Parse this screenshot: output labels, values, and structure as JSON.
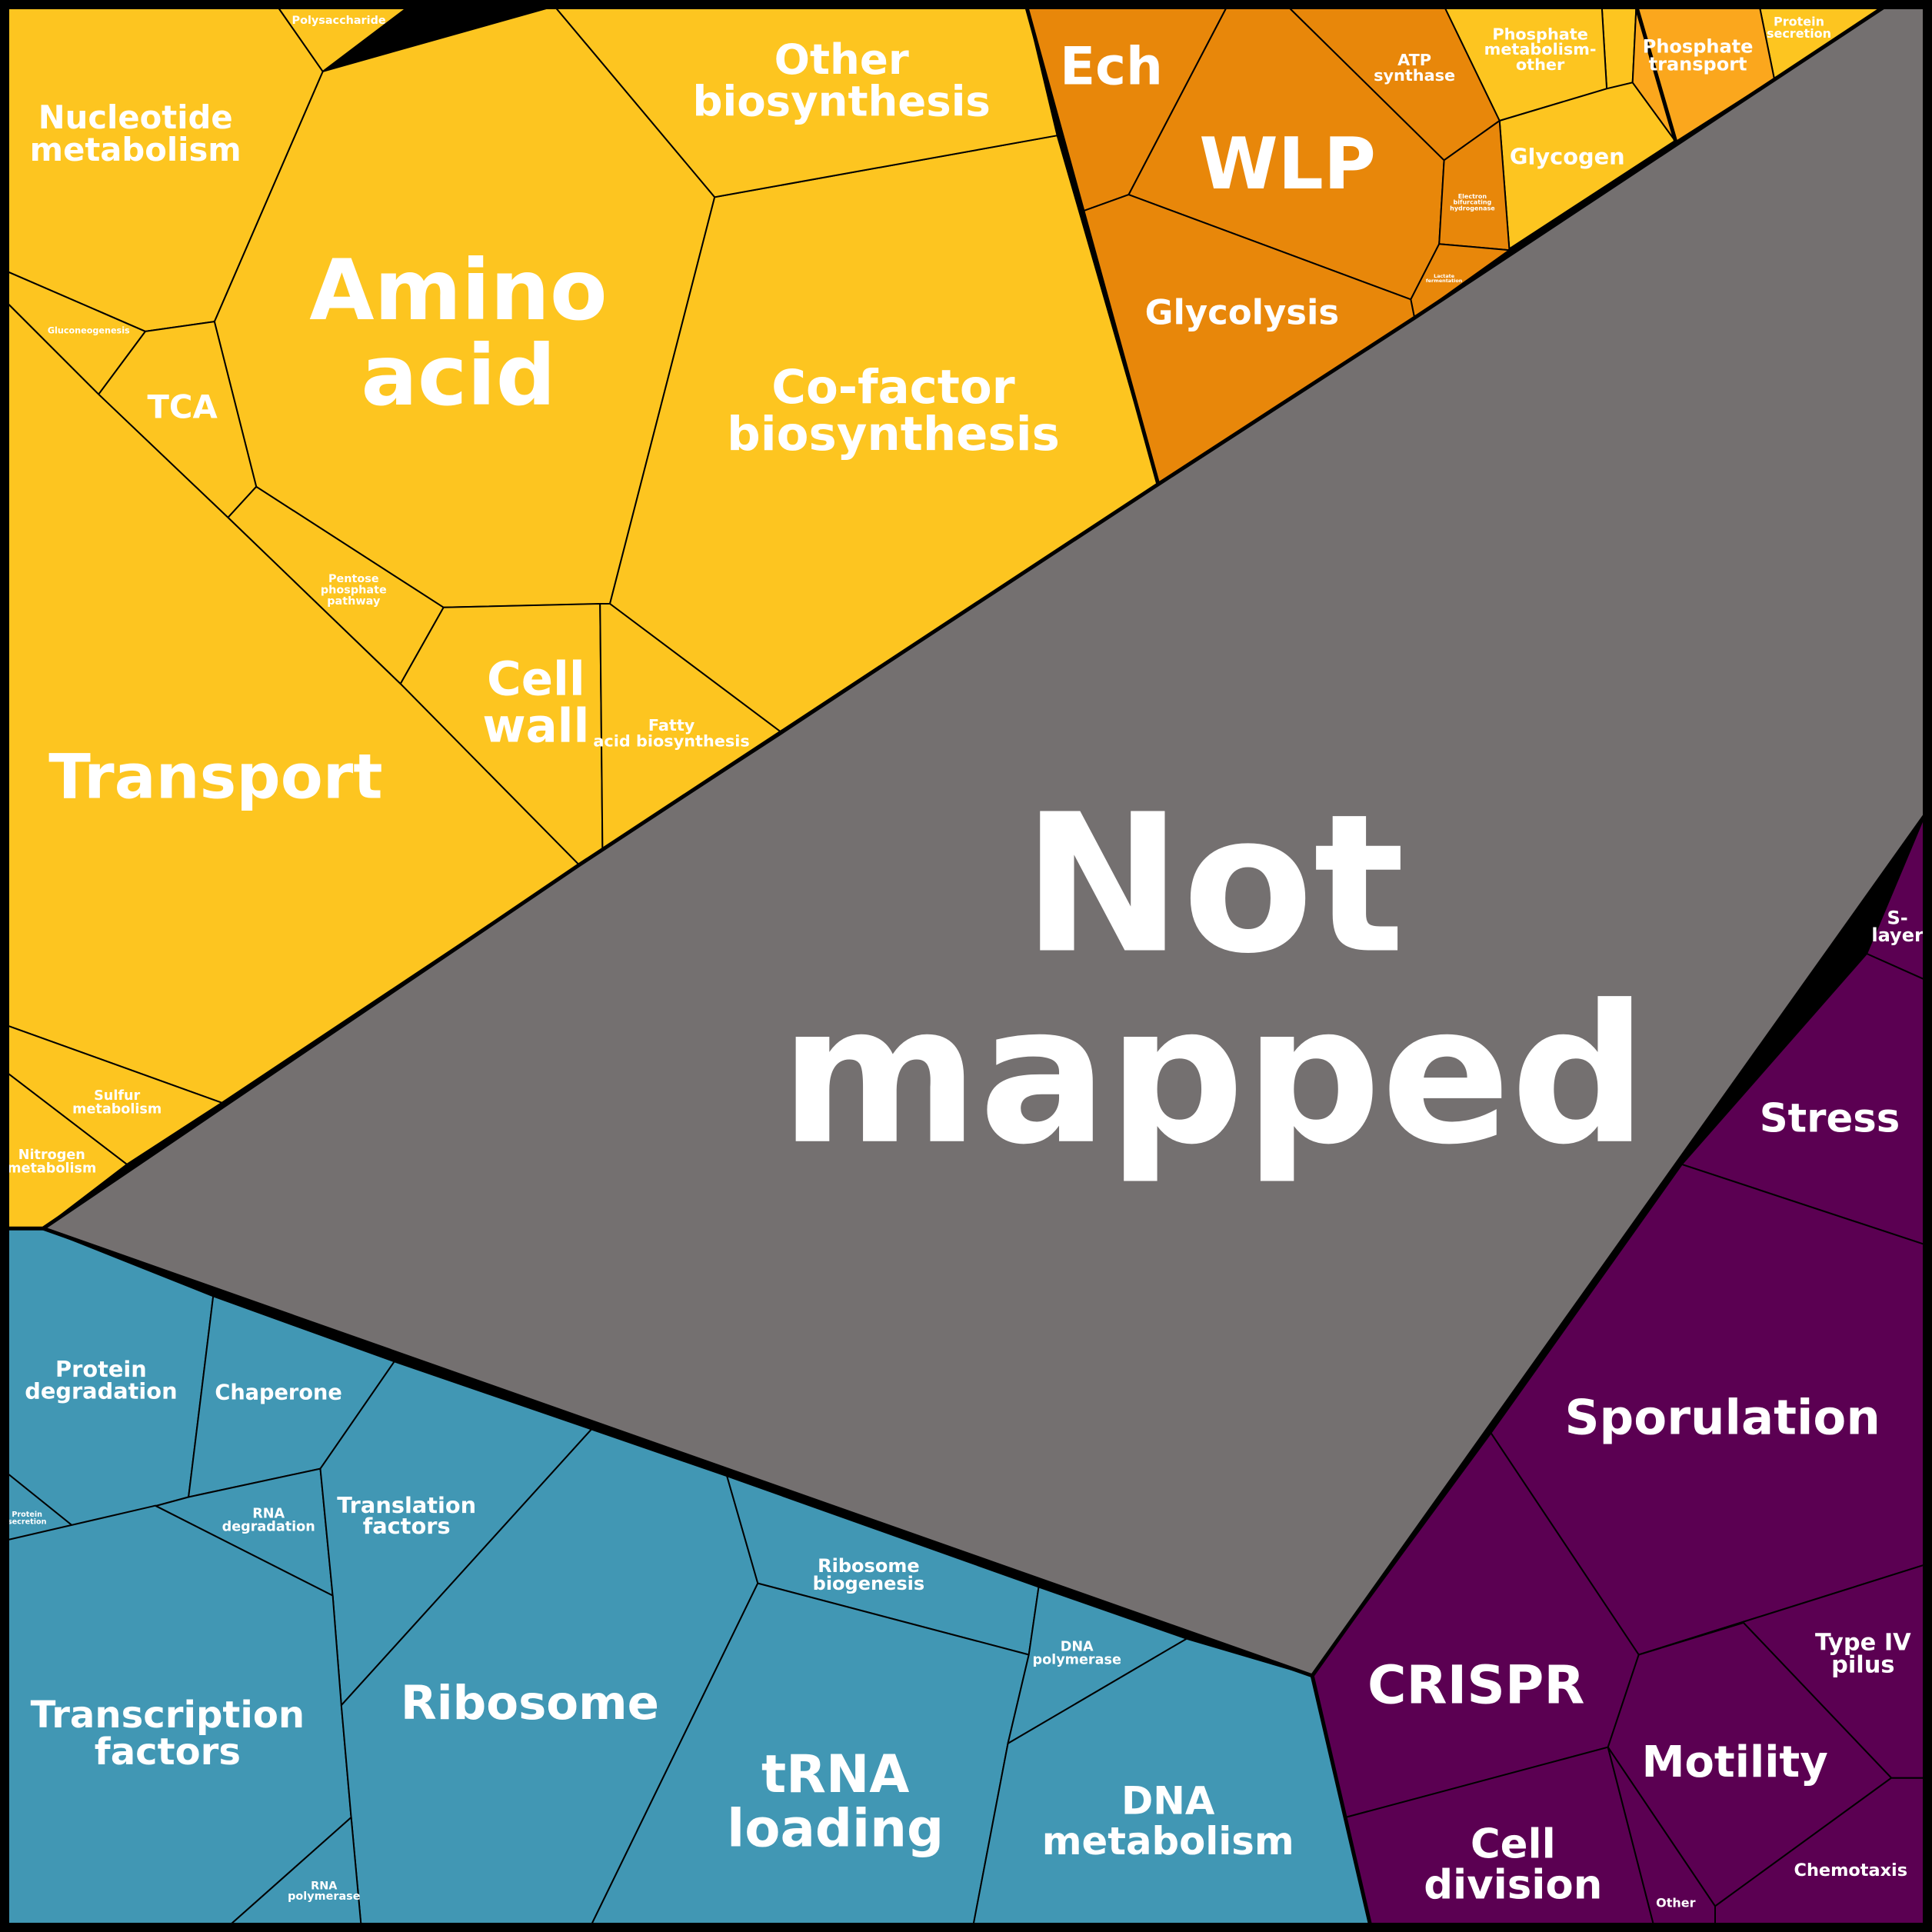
{
  "colors": {
    "metabolism": "#fdc520",
    "energy": "#e8870a",
    "phosphate_transport": "#fba71d",
    "information": "#4197b4",
    "cellular": "#5b0052",
    "not_mapped": "#747070"
  },
  "cells": [
    {
      "id": "not-mapped",
      "label": "Not mapped",
      "group": "not_mapped"
    },
    {
      "id": "amino-acid",
      "label": "Amino acid",
      "group": "metabolism"
    },
    {
      "id": "co-factor-biosynthesis",
      "label": "Co-factor biosynthesis",
      "group": "metabolism"
    },
    {
      "id": "other-biosynthesis",
      "label": "Other biosynthesis",
      "group": "metabolism"
    },
    {
      "id": "nucleotide-metabolism",
      "label": "Nucleotide metabolism",
      "group": "metabolism"
    },
    {
      "id": "polysaccharide",
      "label": "Polysaccharide",
      "group": "metabolism"
    },
    {
      "id": "gluconeogenesis",
      "label": "Gluconeogenesis",
      "group": "metabolism"
    },
    {
      "id": "tca",
      "label": "TCA",
      "group": "metabolism"
    },
    {
      "id": "pentose-phosphate-pathway",
      "label": "Pentose phosphate pathway",
      "group": "metabolism"
    },
    {
      "id": "cell-wall",
      "label": "Cell wall",
      "group": "metabolism"
    },
    {
      "id": "fatty-acid-biosynthesis",
      "label": "Fatty acid biosynthesis",
      "group": "metabolism"
    },
    {
      "id": "transport",
      "label": "Transport",
      "group": "metabolism"
    },
    {
      "id": "sulfur-metabolism",
      "label": "Sulfur metabolism",
      "group": "metabolism"
    },
    {
      "id": "nitrogen-metabolism",
      "label": "Nitrogen metabolism",
      "group": "metabolism"
    },
    {
      "id": "phosphate-metabolism-other",
      "label": "Phosphate metabolism- other",
      "group": "metabolism"
    },
    {
      "id": "glycogen",
      "label": "Glycogen",
      "group": "metabolism"
    },
    {
      "id": "protein-secretion-top",
      "label": "Protein secretion",
      "group": "metabolism"
    },
    {
      "id": "phosphate-transport",
      "label": "Phosphate transport",
      "group": "phosphate_transport"
    },
    {
      "id": "ech",
      "label": "Ech",
      "group": "energy"
    },
    {
      "id": "wlp",
      "label": "WLP",
      "group": "energy"
    },
    {
      "id": "atp-synthase",
      "label": "ATP synthase",
      "group": "energy"
    },
    {
      "id": "electron-bifurcating-hydrogenase",
      "label": "Electron bifurcating hydrogenase",
      "group": "energy"
    },
    {
      "id": "lactate-fermentation",
      "label": "Lactate fermentation",
      "group": "energy"
    },
    {
      "id": "glycolysis",
      "label": "Glycolysis",
      "group": "energy"
    },
    {
      "id": "protein-degradation",
      "label": "Protein degradation",
      "group": "information"
    },
    {
      "id": "chaperone",
      "label": "Chaperone",
      "group": "information"
    },
    {
      "id": "protein-secretion-bottom",
      "label": "Protein secretion",
      "group": "information"
    },
    {
      "id": "rna-degradation",
      "label": "RNA degradation",
      "group": "information"
    },
    {
      "id": "translation-factors",
      "label": "Translation factors",
      "group": "information"
    },
    {
      "id": "transcription-factors",
      "label": "Transcription factors",
      "group": "information"
    },
    {
      "id": "ribosome",
      "label": "Ribosome",
      "group": "information"
    },
    {
      "id": "ribosome-biogenesis",
      "label": "Ribosome biogenesis",
      "group": "information"
    },
    {
      "id": "trna-loading",
      "label": "tRNA loading",
      "group": "information"
    },
    {
      "id": "dna-polymerase",
      "label": "DNA polymerase",
      "group": "information"
    },
    {
      "id": "dna-metabolism",
      "label": "DNA metabolism",
      "group": "information"
    },
    {
      "id": "rna-polymerase",
      "label": "RNA polymerase",
      "group": "information"
    },
    {
      "id": "s-layer",
      "label": "S- layer",
      "group": "cellular"
    },
    {
      "id": "stress",
      "label": "Stress",
      "group": "cellular"
    },
    {
      "id": "sporulation",
      "label": "Sporulation",
      "group": "cellular"
    },
    {
      "id": "crispr",
      "label": "CRISPR",
      "group": "cellular"
    },
    {
      "id": "type-iv-pilus",
      "label": "Type IV pilus",
      "group": "cellular"
    },
    {
      "id": "motility",
      "label": "Motility",
      "group": "cellular"
    },
    {
      "id": "cell-division",
      "label": "Cell division",
      "group": "cellular"
    },
    {
      "id": "chemotaxis",
      "label": "Chemotaxis",
      "group": "cellular"
    },
    {
      "id": "other",
      "label": "Other",
      "group": "cellular"
    }
  ]
}
